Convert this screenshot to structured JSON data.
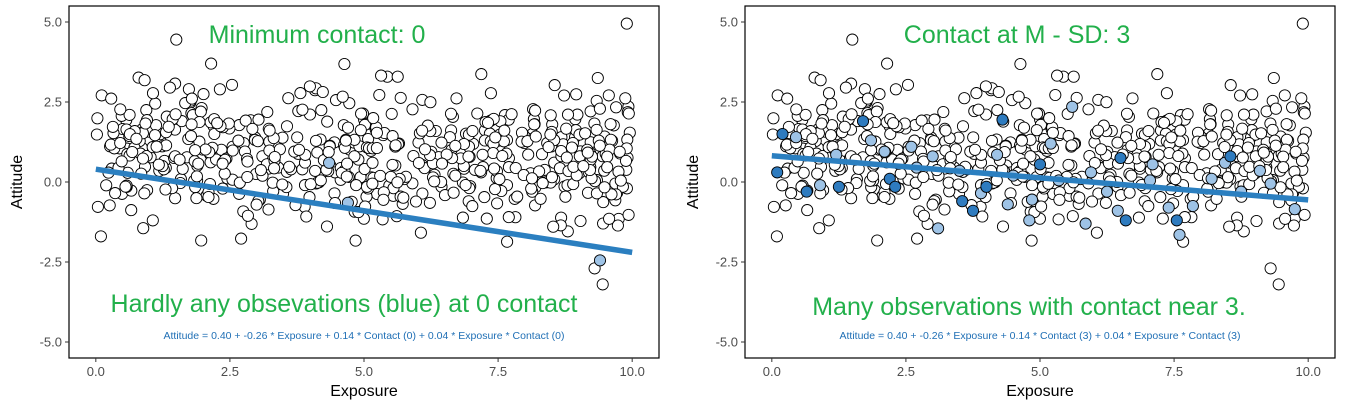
{
  "colors": {
    "annotation_green": "#22b04b",
    "regression_blue": "#2b7fc0",
    "equation_blue": "#1f6fb5",
    "point_stroke": "#000000",
    "point_fill_default": "#ffffff",
    "point_fill_light_blue": "#9ec3e6",
    "point_fill_dark_blue": "#2e7bbf"
  },
  "chart_data": [
    {
      "type": "scatter",
      "title": "",
      "xlabel": "Exposure",
      "ylabel": "Attitude",
      "xlim": [
        -0.5,
        10.5
      ],
      "ylim": [
        -5.5,
        5.5
      ],
      "x_ticks": [
        0.0,
        2.5,
        5.0,
        7.5,
        10.0
      ],
      "x_tick_labels": [
        "0.0",
        "2.5",
        "5.0",
        "7.5",
        "10.0"
      ],
      "y_ticks": [
        5.0,
        2.5,
        0.0,
        -2.5,
        -5.0
      ],
      "y_tick_labels": [
        "5.0",
        "2.5",
        "0.0",
        "-2.5",
        "-5.0"
      ],
      "grid": false,
      "headline": "Minimum contact: 0",
      "footnote": "Hardly any obsevations (blue) at 0 contact",
      "equation": "Attitude = 0.40 + -0.26 * Exposure + 0.14 * Contact (0) + 0.04 * Exposure * Contact (0)",
      "regression_line": {
        "x": [
          0.0,
          10.0
        ],
        "y": [
          0.4,
          -2.2
        ]
      },
      "highlighted_points": [
        {
          "x": 4.35,
          "y": 0.6,
          "shade": "light"
        },
        {
          "x": 4.7,
          "y": -0.65,
          "shade": "light"
        },
        {
          "x": 9.4,
          "y": -2.45,
          "shade": "light"
        }
      ],
      "point_count": 600
    },
    {
      "type": "scatter",
      "title": "",
      "xlabel": "Exposure",
      "ylabel": "Attitude",
      "xlim": [
        -0.5,
        10.5
      ],
      "ylim": [
        -5.5,
        5.5
      ],
      "x_ticks": [
        0.0,
        2.5,
        5.0,
        7.5,
        10.0
      ],
      "x_tick_labels": [
        "0.0",
        "2.5",
        "5.0",
        "7.5",
        "10.0"
      ],
      "y_ticks": [
        5.0,
        2.5,
        0.0,
        -2.5,
        -5.0
      ],
      "y_tick_labels": [
        "5.0",
        "2.5",
        "0.0",
        "-2.5",
        "-5.0"
      ],
      "grid": false,
      "headline": "Contact at M - SD: 3",
      "footnote": "Many observations with contact near 3.",
      "equation": "Attitude = 0.40 + -0.26 * Exposure + 0.14 * Contact (3) + 0.04 * Exposure * Contact (3)",
      "regression_line": {
        "x": [
          0.0,
          10.0
        ],
        "y": [
          0.82,
          -0.56
        ]
      },
      "highlighted_points": [
        {
          "x": 0.1,
          "y": 0.3,
          "shade": "dark"
        },
        {
          "x": 0.2,
          "y": 1.5,
          "shade": "dark"
        },
        {
          "x": 0.45,
          "y": 1.4,
          "shade": "light"
        },
        {
          "x": 0.65,
          "y": -0.3,
          "shade": "dark"
        },
        {
          "x": 0.9,
          "y": -0.1,
          "shade": "light"
        },
        {
          "x": 1.2,
          "y": 0.85,
          "shade": "light"
        },
        {
          "x": 1.25,
          "y": -0.15,
          "shade": "dark"
        },
        {
          "x": 1.7,
          "y": 1.9,
          "shade": "dark"
        },
        {
          "x": 1.85,
          "y": 1.3,
          "shade": "light"
        },
        {
          "x": 2.1,
          "y": 0.95,
          "shade": "light"
        },
        {
          "x": 2.2,
          "y": 0.1,
          "shade": "dark"
        },
        {
          "x": 2.3,
          "y": -0.15,
          "shade": "dark"
        },
        {
          "x": 2.6,
          "y": 1.1,
          "shade": "light"
        },
        {
          "x": 2.7,
          "y": 0.45,
          "shade": "light"
        },
        {
          "x": 3.0,
          "y": 0.8,
          "shade": "light"
        },
        {
          "x": 3.1,
          "y": -1.45,
          "shade": "light"
        },
        {
          "x": 3.5,
          "y": 0.35,
          "shade": "light"
        },
        {
          "x": 3.55,
          "y": -0.6,
          "shade": "dark"
        },
        {
          "x": 3.75,
          "y": -0.9,
          "shade": "dark"
        },
        {
          "x": 3.9,
          "y": -0.35,
          "shade": "light"
        },
        {
          "x": 4.0,
          "y": -0.15,
          "shade": "dark"
        },
        {
          "x": 4.2,
          "y": 0.85,
          "shade": "light"
        },
        {
          "x": 4.3,
          "y": 1.95,
          "shade": "dark"
        },
        {
          "x": 4.4,
          "y": -0.7,
          "shade": "light"
        },
        {
          "x": 4.5,
          "y": 0.2,
          "shade": "light"
        },
        {
          "x": 4.8,
          "y": -1.2,
          "shade": "light"
        },
        {
          "x": 4.85,
          "y": -0.55,
          "shade": "light"
        },
        {
          "x": 5.0,
          "y": 0.55,
          "shade": "dark"
        },
        {
          "x": 5.2,
          "y": 1.2,
          "shade": "light"
        },
        {
          "x": 5.35,
          "y": 0.05,
          "shade": "light"
        },
        {
          "x": 5.6,
          "y": 2.35,
          "shade": "light"
        },
        {
          "x": 5.85,
          "y": -1.3,
          "shade": "light"
        },
        {
          "x": 5.95,
          "y": 0.3,
          "shade": "light"
        },
        {
          "x": 6.25,
          "y": -0.3,
          "shade": "light"
        },
        {
          "x": 6.45,
          "y": -0.9,
          "shade": "light"
        },
        {
          "x": 6.5,
          "y": 0.75,
          "shade": "dark"
        },
        {
          "x": 6.6,
          "y": -1.2,
          "shade": "dark"
        },
        {
          "x": 7.05,
          "y": 0.05,
          "shade": "light"
        },
        {
          "x": 7.1,
          "y": 0.55,
          "shade": "light"
        },
        {
          "x": 7.4,
          "y": -0.8,
          "shade": "light"
        },
        {
          "x": 7.55,
          "y": -1.2,
          "shade": "dark"
        },
        {
          "x": 7.6,
          "y": -1.65,
          "shade": "light"
        },
        {
          "x": 7.85,
          "y": -0.75,
          "shade": "light"
        },
        {
          "x": 8.2,
          "y": 0.1,
          "shade": "light"
        },
        {
          "x": 8.45,
          "y": 0.6,
          "shade": "light"
        },
        {
          "x": 8.55,
          "y": 0.8,
          "shade": "dark"
        },
        {
          "x": 8.75,
          "y": -0.3,
          "shade": "light"
        },
        {
          "x": 9.1,
          "y": 0.35,
          "shade": "light"
        },
        {
          "x": 9.3,
          "y": -0.05,
          "shade": "light"
        },
        {
          "x": 9.75,
          "y": -0.85,
          "shade": "light"
        }
      ],
      "point_count": 600
    }
  ]
}
